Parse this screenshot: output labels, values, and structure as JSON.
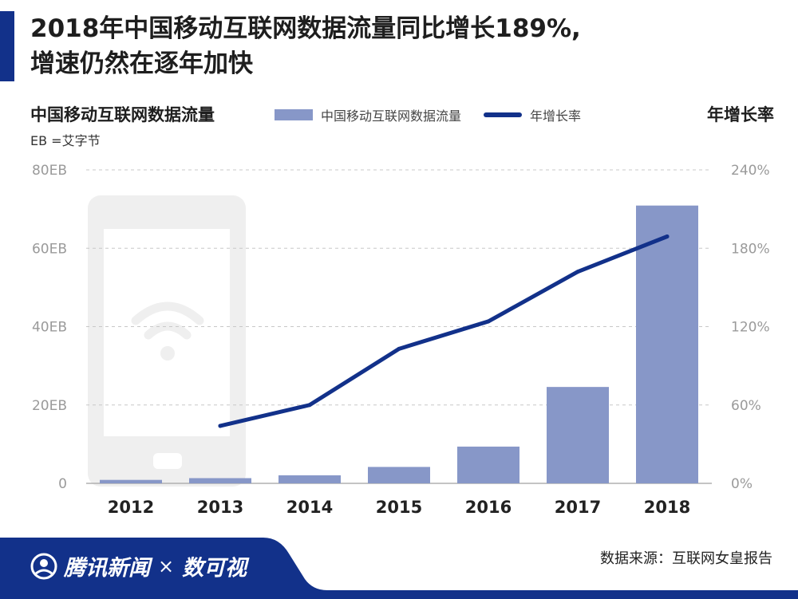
{
  "header": {
    "title_line1": "2018年中国移动互联网数据流量同比增长189%,",
    "title_line2": "增速仍然在逐年加快"
  },
  "chart_data": {
    "type": "bar",
    "categories": [
      "2012",
      "2013",
      "2014",
      "2015",
      "2016",
      "2017",
      "2018"
    ],
    "series": [
      {
        "name": "中国移动互联网数据流量",
        "type": "bar",
        "axis": "left",
        "values": [
          0.88,
          1.33,
          2.06,
          4.19,
          9.38,
          24.6,
          70.9
        ]
      },
      {
        "name": "年增长率",
        "type": "line",
        "axis": "right",
        "values": [
          null,
          44,
          60,
          103,
          124,
          162,
          189
        ]
      }
    ],
    "y_left": {
      "title": "中国移动互联网数据流量",
      "unit_note": "EB =艾字节",
      "ylim": [
        0,
        80
      ],
      "ticks": [
        "0",
        "20EB",
        "40EB",
        "60EB",
        "80EB"
      ]
    },
    "y_right": {
      "title": "年增长率",
      "ylim": [
        0,
        240
      ],
      "ticks": [
        "0%",
        "60%",
        "120%",
        "180%",
        "240%"
      ]
    },
    "legend_position": "top-center",
    "grid": true,
    "colors": {
      "bar": "#8797c8",
      "line": "#12318a",
      "grid": "#c8c8c8",
      "tick": "#9a9a9a"
    }
  },
  "footer": {
    "brand_name": "腾讯新闻",
    "brand_x": "×",
    "brand_partner": "数可视",
    "source": "数据来源：互联网女皇报告",
    "band_color": "#12318a"
  }
}
